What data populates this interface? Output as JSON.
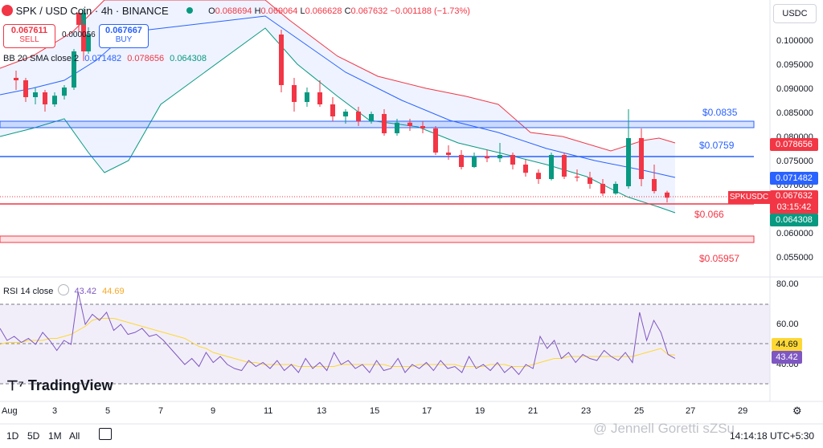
{
  "header": {
    "symbol_title": "SPK / USD Coin · 4h · BINANCE",
    "ohlc": {
      "o_label": "O",
      "o": "0.068694",
      "h_label": "H",
      "h": "0.069064",
      "l_label": "L",
      "l": "0.066628",
      "c_label": "C",
      "c": "0.067632",
      "change": "−0.001188 (−1.73%)"
    },
    "currency": "USDC"
  },
  "trade": {
    "sell_price": "0.067611",
    "sell_label": "SELL",
    "spread": "0.000056",
    "buy_price": "0.067667",
    "buy_label": "BUY"
  },
  "bb_legend": {
    "label": "BB 20 SMA close 2",
    "basis": "0.071482",
    "upper": "0.078656",
    "lower": "0.064308"
  },
  "rsi_legend": {
    "label": "RSI 14 close",
    "rsi": "43.42",
    "ma": "44.69"
  },
  "price_axis": [
    "0.100000",
    "0.095000",
    "0.090000",
    "0.085000",
    "0.080000",
    "0.075000",
    "0.070000",
    "0.065000",
    "0.060000",
    "0.055000"
  ],
  "price_tags": {
    "upper": "0.078656",
    "basis": "0.071482",
    "symbol": "SPKUSDC",
    "last": "0.067632",
    "countdown": "03:15:42",
    "lower": "0.064308"
  },
  "rsi_axis": [
    "80.00",
    "60.00",
    "40.00"
  ],
  "rsi_tags": {
    "ma": "44.69",
    "rsi": "43.42"
  },
  "time_axis": [
    "Aug",
    "3",
    "5",
    "7",
    "9",
    "11",
    "13",
    "15",
    "17",
    "19",
    "21",
    "23",
    "25",
    "27",
    "29"
  ],
  "level_labels": [
    "$0.0835",
    "$0.0759",
    "$0.066",
    "$0.05957"
  ],
  "footer": {
    "timeframes": [
      "1D",
      "5D",
      "1M",
      "All"
    ],
    "clock": "14:14:18 UTC+5:30",
    "watermark": "@ Jennell Goretti sZSu"
  },
  "logo_text": "TradingView",
  "colors": {
    "bull": "#089981",
    "bear": "#f23645",
    "bb_basis": "#2962ff",
    "bb_upper": "#f23645",
    "bb_lower": "#089981",
    "rsi": "#7e57c2",
    "rsi_ma": "#fdd835"
  },
  "chart_data": {
    "type": "candlestick",
    "title": "SPK / USD Coin · 4h · BINANCE",
    "ylim": [
      0.0518,
      0.106
    ],
    "grid": true,
    "candles": [
      {
        "x": "Aug 2",
        "o": 0.0925,
        "h": 0.094,
        "c": 0.092,
        "l": 0.09
      },
      {
        "x": "Aug 2",
        "o": 0.092,
        "h": 0.0925,
        "c": 0.0885,
        "l": 0.0875
      },
      {
        "x": "Aug 3",
        "o": 0.0885,
        "h": 0.0905,
        "c": 0.0895,
        "l": 0.087
      },
      {
        "x": "Aug 3",
        "o": 0.0895,
        "h": 0.09,
        "c": 0.087,
        "l": 0.0855
      },
      {
        "x": "Aug 3",
        "o": 0.087,
        "h": 0.0895,
        "c": 0.0888,
        "l": 0.0865
      },
      {
        "x": "Aug 4",
        "o": 0.0888,
        "h": 0.091,
        "c": 0.0905,
        "l": 0.088
      },
      {
        "x": "Aug 4",
        "o": 0.0905,
        "h": 0.0985,
        "c": 0.098,
        "l": 0.09
      },
      {
        "x": "Aug 4",
        "o": 0.098,
        "h": 0.107,
        "c": 0.106,
        "l": 0.0975
      },
      {
        "x": "Aug 11",
        "o": 0.106,
        "h": 0.1065,
        "c": 0.1035,
        "l": 0.102
      },
      {
        "x": "Aug 12",
        "o": 0.1035,
        "h": 0.1045,
        "c": 0.098,
        "l": 0.096
      },
      {
        "x": "Aug 12",
        "o": 0.098,
        "h": 0.103,
        "c": 0.1015,
        "l": 0.0975
      },
      {
        "x": "Aug 12",
        "o": 0.1015,
        "h": 0.1025,
        "c": 0.091,
        "l": 0.0895
      },
      {
        "x": "Aug 13",
        "o": 0.091,
        "h": 0.0925,
        "c": 0.0875,
        "l": 0.0855
      },
      {
        "x": "Aug 13",
        "o": 0.0875,
        "h": 0.0905,
        "c": 0.0895,
        "l": 0.0865
      },
      {
        "x": "Aug 14",
        "o": 0.0895,
        "h": 0.092,
        "c": 0.087,
        "l": 0.0865
      },
      {
        "x": "Aug 14",
        "o": 0.087,
        "h": 0.0885,
        "c": 0.0845,
        "l": 0.0835
      },
      {
        "x": "Aug 15",
        "o": 0.0845,
        "h": 0.086,
        "c": 0.0855,
        "l": 0.083
      },
      {
        "x": "Aug 15",
        "o": 0.0855,
        "h": 0.0865,
        "c": 0.0835,
        "l": 0.0825
      },
      {
        "x": "Aug 16",
        "o": 0.0835,
        "h": 0.0855,
        "c": 0.085,
        "l": 0.083
      },
      {
        "x": "Aug 16",
        "o": 0.085,
        "h": 0.086,
        "c": 0.081,
        "l": 0.0805
      },
      {
        "x": "Aug 17",
        "o": 0.081,
        "h": 0.084,
        "c": 0.0832,
        "l": 0.0805
      },
      {
        "x": "Aug 17",
        "o": 0.0832,
        "h": 0.084,
        "c": 0.0825,
        "l": 0.0815
      },
      {
        "x": "Aug 18",
        "o": 0.0825,
        "h": 0.0835,
        "c": 0.082,
        "l": 0.081
      },
      {
        "x": "Aug 18",
        "o": 0.082,
        "h": 0.0825,
        "c": 0.077,
        "l": 0.0765
      },
      {
        "x": "Aug 19",
        "o": 0.077,
        "h": 0.0785,
        "c": 0.0765,
        "l": 0.0755
      },
      {
        "x": "Aug 19",
        "o": 0.0765,
        "h": 0.0775,
        "c": 0.074,
        "l": 0.0735
      },
      {
        "x": "Aug 20",
        "o": 0.074,
        "h": 0.077,
        "c": 0.0762,
        "l": 0.0738
      },
      {
        "x": "Aug 20",
        "o": 0.0762,
        "h": 0.0775,
        "c": 0.0758,
        "l": 0.075
      },
      {
        "x": "Aug 21",
        "o": 0.0758,
        "h": 0.079,
        "c": 0.0765,
        "l": 0.075
      },
      {
        "x": "Aug 21",
        "o": 0.0765,
        "h": 0.077,
        "c": 0.0745,
        "l": 0.0735
      },
      {
        "x": "Aug 22",
        "o": 0.0745,
        "h": 0.0755,
        "c": 0.0728,
        "l": 0.072
      },
      {
        "x": "Aug 22",
        "o": 0.0728,
        "h": 0.0735,
        "c": 0.0715,
        "l": 0.0705
      },
      {
        "x": "Aug 23",
        "o": 0.0715,
        "h": 0.077,
        "c": 0.0765,
        "l": 0.0712
      },
      {
        "x": "Aug 23",
        "o": 0.0765,
        "h": 0.077,
        "c": 0.072,
        "l": 0.0715
      },
      {
        "x": "Aug 24",
        "o": 0.072,
        "h": 0.0735,
        "c": 0.0718,
        "l": 0.071
      },
      {
        "x": "Aug 24",
        "o": 0.0718,
        "h": 0.073,
        "c": 0.0705,
        "l": 0.0695
      },
      {
        "x": "Aug 25",
        "o": 0.0705,
        "h": 0.0715,
        "c": 0.0685,
        "l": 0.068
      },
      {
        "x": "Aug 25",
        "o": 0.0685,
        "h": 0.071,
        "c": 0.0705,
        "l": 0.0682
      },
      {
        "x": "Aug 25",
        "o": 0.07,
        "h": 0.086,
        "c": 0.08,
        "l": 0.0695
      },
      {
        "x": "Aug 26",
        "o": 0.08,
        "h": 0.082,
        "c": 0.0715,
        "l": 0.07
      },
      {
        "x": "Aug 26",
        "o": 0.0715,
        "h": 0.0745,
        "c": 0.069,
        "l": 0.0685
      },
      {
        "x": "Aug 26",
        "o": 0.068694,
        "h": 0.069064,
        "c": 0.067632,
        "l": 0.066628
      }
    ],
    "bollinger": {
      "upper_last": 0.078656,
      "basis_last": 0.071482,
      "lower_last": 0.064308
    },
    "horizontal_levels": [
      0.0835,
      0.0759,
      0.066,
      0.05957
    ],
    "rsi": {
      "last": 43.42,
      "ma_last": 44.69,
      "ylim": [
        30,
        80
      ],
      "band": [
        30,
        70
      ]
    }
  }
}
